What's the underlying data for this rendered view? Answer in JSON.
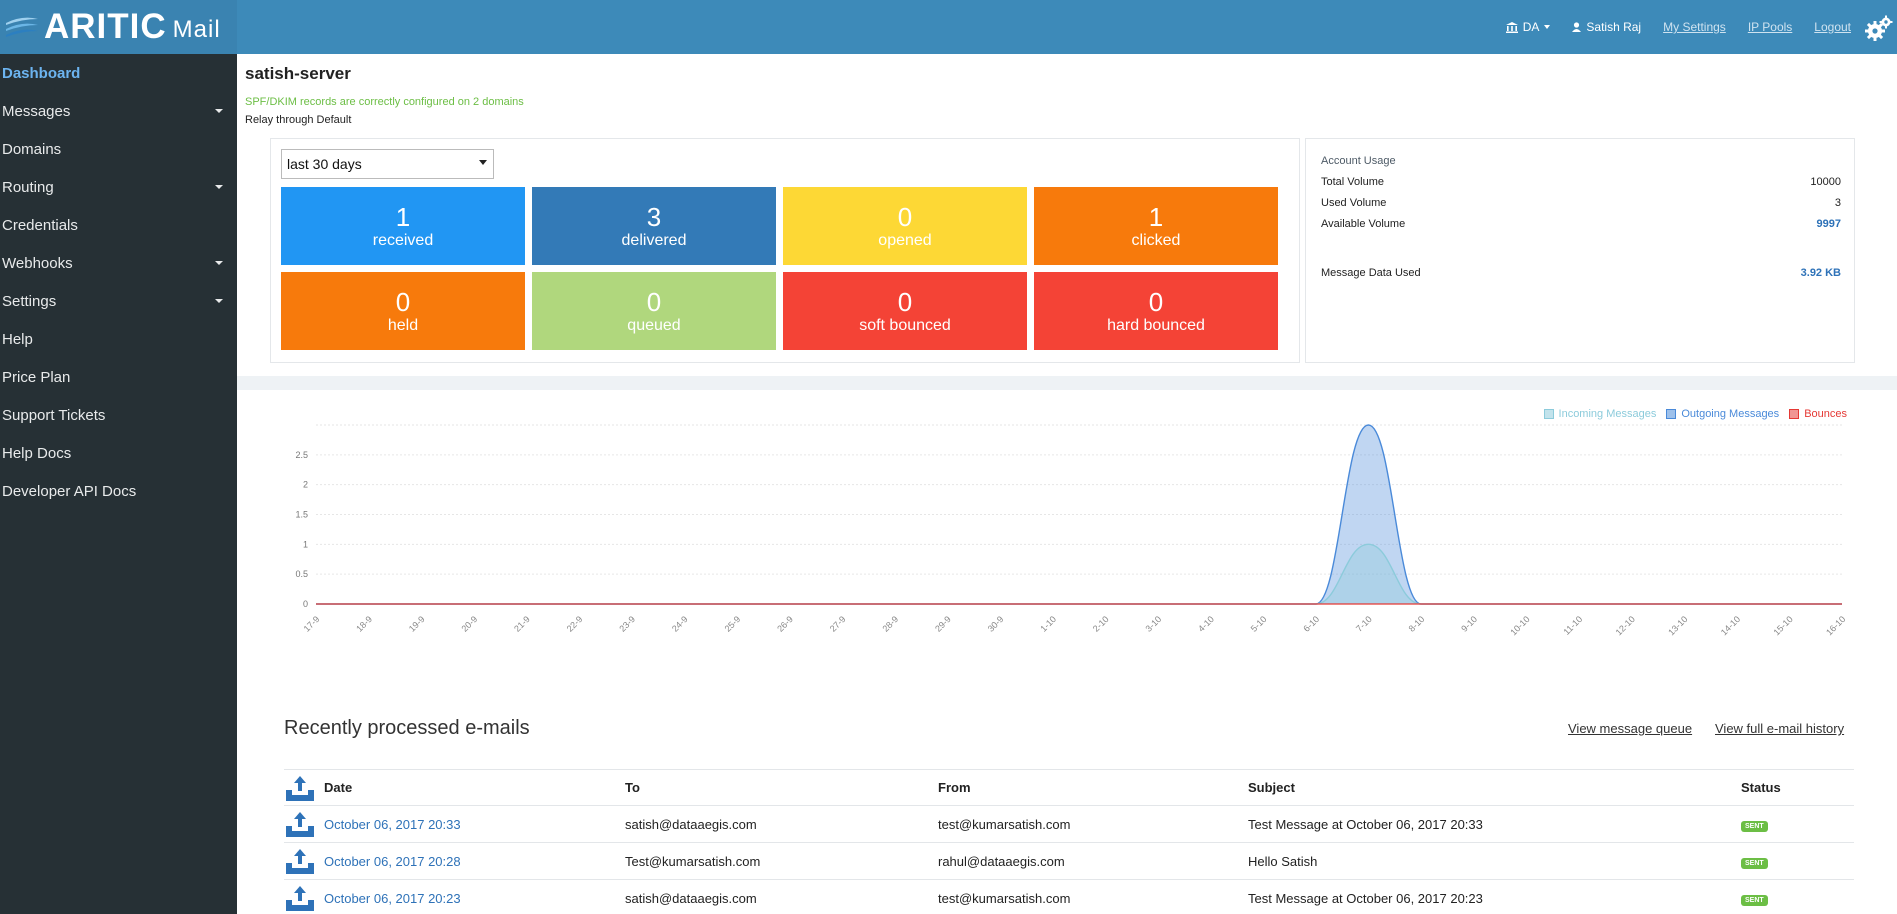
{
  "brand": {
    "name": "ARITIC",
    "sub": "Mail"
  },
  "topnav": {
    "account": "DA",
    "user": "Satish Raj",
    "my_settings": "My Settings",
    "ip_pools": "IP Pools",
    "logout": "Logout"
  },
  "sidebar": {
    "items": [
      {
        "label": "Dashboard",
        "active": true,
        "has_caret": false
      },
      {
        "label": "Messages",
        "has_caret": true
      },
      {
        "label": "Domains",
        "has_caret": false
      },
      {
        "label": "Routing",
        "has_caret": true
      },
      {
        "label": "Credentials",
        "has_caret": false
      },
      {
        "label": "Webhooks",
        "has_caret": true
      },
      {
        "label": "Settings",
        "has_caret": true
      },
      {
        "label": "Help",
        "has_caret": false
      },
      {
        "label": "Price Plan",
        "has_caret": false
      },
      {
        "label": "Support Tickets",
        "has_caret": false
      },
      {
        "label": "Help Docs",
        "has_caret": false
      },
      {
        "label": "Developer API Docs",
        "has_caret": false
      }
    ]
  },
  "server": {
    "title": "satish-server",
    "spf_note": "SPF/DKIM records are correctly configured on 2 domains",
    "relay_note": "Relay through Default",
    "brace": "}"
  },
  "range_select": {
    "value": "last 30 days"
  },
  "tiles": [
    {
      "num": "1",
      "label": "received",
      "color": "#2196f3"
    },
    {
      "num": "3",
      "label": "delivered",
      "color": "#337ab7"
    },
    {
      "num": "0",
      "label": "opened",
      "color": "#fdd835"
    },
    {
      "num": "1",
      "label": "clicked",
      "color": "#f77a0c"
    },
    {
      "num": "0",
      "label": "held",
      "color": "#f77a0c"
    },
    {
      "num": "0",
      "label": "queued",
      "color": "#b0d77d"
    },
    {
      "num": "0",
      "label": "soft bounced",
      "color": "#f44336"
    },
    {
      "num": "0",
      "label": "hard bounced",
      "color": "#f44336"
    }
  ],
  "usage": {
    "title": "Account Usage",
    "rows": [
      {
        "label": "Total Volume",
        "value": "10000",
        "blue": false
      },
      {
        "label": "Used Volume",
        "value": "3",
        "blue": false
      },
      {
        "label": "Available Volume",
        "value": "9997",
        "blue": true
      },
      {
        "label": "Message Data Used",
        "value": "3.92 KB",
        "blue": true
      }
    ]
  },
  "chart_data": {
    "type": "area",
    "x": [
      "17-9",
      "18-9",
      "19-9",
      "20-9",
      "21-9",
      "22-9",
      "23-9",
      "24-9",
      "25-9",
      "26-9",
      "27-9",
      "28-9",
      "29-9",
      "30-9",
      "1-10",
      "2-10",
      "3-10",
      "4-10",
      "5-10",
      "6-10",
      "7-10",
      "8-10",
      "9-10",
      "10-10",
      "11-10",
      "12-10",
      "13-10",
      "14-10",
      "15-10",
      "16-10"
    ],
    "ylim": [
      0,
      3
    ],
    "yticks": [
      "0",
      "0.5",
      "1",
      "1.5",
      "2",
      "2.5"
    ],
    "series": [
      {
        "name": "Incoming Messages",
        "color": "#8ccbdb",
        "values": [
          0,
          0,
          0,
          0,
          0,
          0,
          0,
          0,
          0,
          0,
          0,
          0,
          0,
          0,
          0,
          0,
          0,
          0,
          0,
          0,
          1,
          0,
          0,
          0,
          0,
          0,
          0,
          0,
          0,
          0
        ]
      },
      {
        "name": "Outgoing Messages",
        "color": "#4a8ad9",
        "values": [
          0,
          0,
          0,
          0,
          0,
          0,
          0,
          0,
          0,
          0,
          0,
          0,
          0,
          0,
          0,
          0,
          0,
          0,
          0,
          0,
          3,
          0,
          0,
          0,
          0,
          0,
          0,
          0,
          0,
          0
        ]
      },
      {
        "name": "Bounces",
        "color": "#e53935",
        "values": [
          0,
          0,
          0,
          0,
          0,
          0,
          0,
          0,
          0,
          0,
          0,
          0,
          0,
          0,
          0,
          0,
          0,
          0,
          0,
          0,
          0,
          0,
          0,
          0,
          0,
          0,
          0,
          0,
          0,
          0
        ]
      }
    ],
    "grid": true,
    "legend_position": "top-right"
  },
  "recent": {
    "title": "Recently processed e-mails",
    "view_queue": "View message queue",
    "view_history": "View full e-mail history",
    "columns": {
      "date": "Date",
      "to": "To",
      "from": "From",
      "subject": "Subject",
      "status": "Status"
    },
    "rows": [
      {
        "date": "October 06, 2017 20:33",
        "to": "satish@dataaegis.com",
        "from": "test@kumarsatish.com",
        "subject": "Test Message at October 06, 2017 20:33",
        "status": "SENT"
      },
      {
        "date": "October 06, 2017 20:28",
        "to": "Test@kumarsatish.com",
        "from": "rahul@dataaegis.com",
        "subject": "Hello Satish",
        "status": "SENT"
      },
      {
        "date": "October 06, 2017 20:23",
        "to": "satish@dataaegis.com",
        "from": "test@kumarsatish.com",
        "subject": "Test Message at October 06, 2017 20:23",
        "status": "SENT"
      }
    ]
  }
}
